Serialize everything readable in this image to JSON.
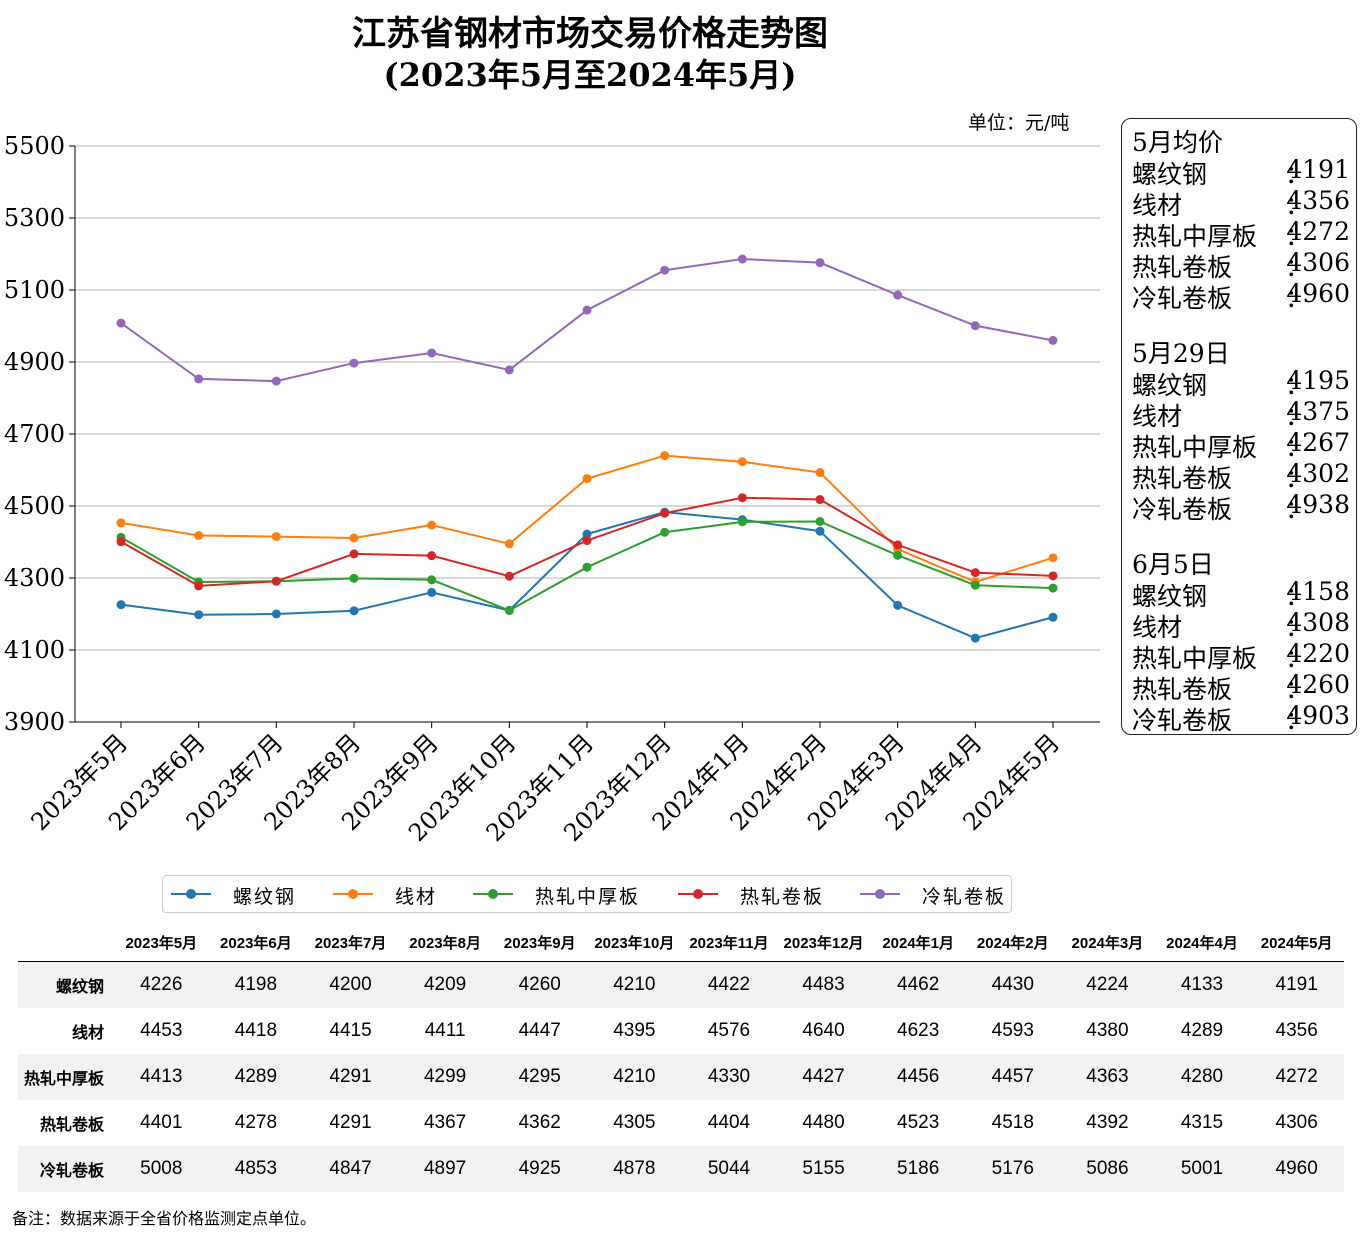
{
  "title": {
    "line1": "江苏省钢材市场交易价格走势图",
    "line2": "(2023年5月至2024年5月)"
  },
  "unit": "单位：元/吨",
  "sidebox": {
    "sections": [
      {
        "heading": "5月均价",
        "rows": [
          {
            "label": "螺纹钢",
            "value": "4191"
          },
          {
            "label": "线材",
            "value": "4356"
          },
          {
            "label": "热轧中厚板",
            "value": "4272"
          },
          {
            "label": "热轧卷板",
            "value": "4306"
          },
          {
            "label": "冷轧卷板",
            "value": "4960"
          }
        ]
      },
      {
        "heading": "5月29日",
        "rows": [
          {
            "label": "螺纹钢",
            "value": "4195"
          },
          {
            "label": "线材",
            "value": "4375"
          },
          {
            "label": "热轧中厚板",
            "value": "4267"
          },
          {
            "label": "热轧卷板",
            "value": "4302"
          },
          {
            "label": "冷轧卷板",
            "value": "4938"
          }
        ]
      },
      {
        "heading": "6月5日",
        "rows": [
          {
            "label": "螺纹钢",
            "value": "4158"
          },
          {
            "label": "线材",
            "value": "4308"
          },
          {
            "label": "热轧中厚板",
            "value": "4220"
          },
          {
            "label": "热轧卷板",
            "value": "4260"
          },
          {
            "label": "冷轧卷板",
            "value": "4903"
          }
        ]
      }
    ]
  },
  "chart_data": {
    "type": "line",
    "title": "江苏省钢材市场交易价格走势图 (2023年5月至2024年5月)",
    "xlabel": "",
    "ylabel": "",
    "ylim": [
      3900,
      5500
    ],
    "yticks": [
      3900,
      4100,
      4300,
      4500,
      4700,
      4900,
      5100,
      5300,
      5500
    ],
    "grid": "horizontal",
    "legend_position": "bottom",
    "categories": [
      "2023年5月",
      "2023年6月",
      "2023年7月",
      "2023年8月",
      "2023年9月",
      "2023年10月",
      "2023年11月",
      "2023年12月",
      "2024年1月",
      "2024年2月",
      "2024年3月",
      "2024年4月",
      "2024年5月"
    ],
    "series": [
      {
        "name": "螺纹钢",
        "color": "#1f77b4",
        "values": [
          4226,
          4198,
          4200,
          4209,
          4260,
          4210,
          4422,
          4483,
          4462,
          4430,
          4224,
          4133,
          4191
        ]
      },
      {
        "name": "线材",
        "color": "#ff7f0e",
        "values": [
          4453,
          4418,
          4415,
          4411,
          4447,
          4395,
          4576,
          4640,
          4623,
          4593,
          4380,
          4289,
          4356
        ]
      },
      {
        "name": "热轧中厚板",
        "color": "#2ca02c",
        "values": [
          4413,
          4289,
          4291,
          4299,
          4295,
          4210,
          4330,
          4427,
          4456,
          4457,
          4363,
          4280,
          4272
        ]
      },
      {
        "name": "热轧卷板",
        "color": "#d62728",
        "values": [
          4401,
          4278,
          4291,
          4367,
          4362,
          4305,
          4404,
          4480,
          4523,
          4518,
          4392,
          4315,
          4306
        ]
      },
      {
        "name": "冷轧卷板",
        "color": "#9467bd",
        "values": [
          5008,
          4853,
          4847,
          4897,
          4925,
          4878,
          5044,
          5155,
          5186,
          5176,
          5086,
          5001,
          4960
        ]
      }
    ]
  },
  "footnote": "备注：数据来源于全省价格监测定点单位。"
}
